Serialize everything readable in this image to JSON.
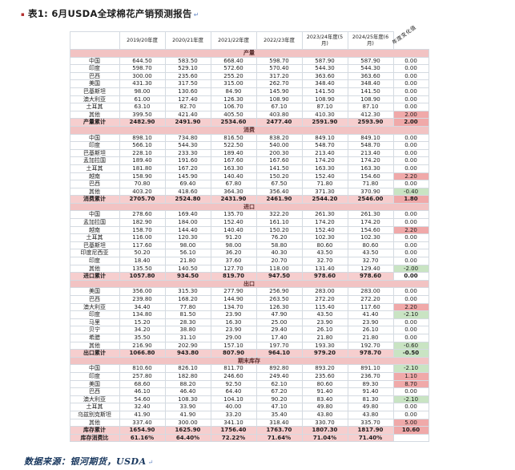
{
  "page": {
    "title": "表1: 6月USDA全球棉花产销预测报告",
    "title_bullet": "▪",
    "paragraph_mark": "↵",
    "source": "数据来源：银河期货，USDA"
  },
  "colors": {
    "section_bg": "#f2c3c3",
    "total_bg": "#f6cece",
    "positive_bg": "#f0a9a9",
    "negative_bg": "#c9e4c3",
    "border": "#d4dae1",
    "source_text": "#17365d",
    "bullet": "#b43030",
    "mark": "#6b8cc7"
  },
  "table": {
    "col_headers": [
      "",
      "2019/20年度",
      "2020/21年度",
      "2021/22年度",
      "2022/23年度",
      "2023/24年度(5月)",
      "2024/25年度(6月)"
    ],
    "change_header": "年度变化值",
    "sections": [
      {
        "id": "production",
        "name": "产量",
        "rows": [
          {
            "label": "中国",
            "values": [
              "644.50",
              "583.50",
              "668.40",
              "598.70",
              "587.90",
              "587.90"
            ],
            "change": "0.00"
          },
          {
            "label": "印度",
            "values": [
              "598.70",
              "529.10",
              "572.60",
              "570.40",
              "544.30",
              "544.30"
            ],
            "change": "0.00"
          },
          {
            "label": "巴西",
            "values": [
              "300.00",
              "235.60",
              "255.20",
              "317.20",
              "363.60",
              "363.60"
            ],
            "change": "0.00"
          },
          {
            "label": "美国",
            "values": [
              "431.30",
              "317.50",
              "315.00",
              "262.70",
              "348.40",
              "348.40"
            ],
            "change": "0.00"
          },
          {
            "label": "巴基斯坦",
            "values": [
              "98.00",
              "130.60",
              "84.90",
              "145.90",
              "141.50",
              "141.50"
            ],
            "change": "0.00"
          },
          {
            "label": "澳大利亚",
            "values": [
              "61.00",
              "127.40",
              "126.30",
              "108.90",
              "108.90",
              "108.90"
            ],
            "change": "0.00"
          },
          {
            "label": "土耳其",
            "values": [
              "63.10",
              "82.70",
              "106.70",
              "67.10",
              "87.10",
              "87.10"
            ],
            "change": "0.00"
          },
          {
            "label": "其他",
            "values": [
              "399.50",
              "421.40",
              "405.50",
              "403.80",
              "410.30",
              "412.30"
            ],
            "change": "2.00"
          },
          {
            "label": "产量累计",
            "values": [
              "2482.90",
              "2491.90",
              "2534.60",
              "2477.40",
              "2591.90",
              "2593.90"
            ],
            "change": "2.00",
            "total": true
          }
        ]
      },
      {
        "id": "consumption",
        "name": "消费",
        "rows": [
          {
            "label": "中国",
            "values": [
              "898.10",
              "734.80",
              "816.50",
              "838.20",
              "849.10",
              "849.10"
            ],
            "change": "0.00"
          },
          {
            "label": "印度",
            "values": [
              "566.10",
              "544.30",
              "522.50",
              "540.00",
              "548.70",
              "548.70"
            ],
            "change": "0.00"
          },
          {
            "label": "巴基斯坦",
            "values": [
              "228.10",
              "233.30",
              "189.40",
              "200.30",
              "213.40",
              "213.40"
            ],
            "change": "0.00"
          },
          {
            "label": "孟加拉国",
            "values": [
              "189.40",
              "191.60",
              "167.60",
              "167.60",
              "174.20",
              "174.20"
            ],
            "change": "0.00"
          },
          {
            "label": "土耳其",
            "values": [
              "181.80",
              "167.20",
              "163.30",
              "141.50",
              "163.30",
              "163.30"
            ],
            "change": "0.00"
          },
          {
            "label": "越南",
            "values": [
              "158.90",
              "145.90",
              "140.40",
              "150.20",
              "152.40",
              "154.60"
            ],
            "change": "2.20"
          },
          {
            "label": "巴西",
            "values": [
              "70.80",
              "69.40",
              "67.80",
              "67.50",
              "71.80",
              "71.80"
            ],
            "change": "0.00"
          },
          {
            "label": "其他",
            "values": [
              "403.20",
              "418.60",
              "364.30",
              "356.40",
              "371.30",
              "370.90"
            ],
            "change": "-0.40"
          },
          {
            "label": "消费累计",
            "values": [
              "2705.70",
              "2524.80",
              "2431.90",
              "2461.90",
              "2544.20",
              "2546.00"
            ],
            "change": "1.80",
            "total": true
          }
        ]
      },
      {
        "id": "imports",
        "name": "进口",
        "rows": [
          {
            "label": "中国",
            "values": [
              "278.60",
              "169.40",
              "135.70",
              "322.20",
              "261.30",
              "261.30"
            ],
            "change": "0.00"
          },
          {
            "label": "孟加拉国",
            "values": [
              "182.90",
              "184.00",
              "152.40",
              "161.10",
              "174.20",
              "174.20"
            ],
            "change": "0.00"
          },
          {
            "label": "越南",
            "values": [
              "158.70",
              "144.40",
              "140.40",
              "150.20",
              "152.40",
              "154.60"
            ],
            "change": "2.20"
          },
          {
            "label": "土耳其",
            "values": [
              "116.00",
              "120.30",
              "91.20",
              "76.20",
              "102.30",
              "102.30"
            ],
            "change": "0.00"
          },
          {
            "label": "巴基斯坦",
            "values": [
              "117.60",
              "98.00",
              "98.00",
              "58.80",
              "80.60",
              "80.60"
            ],
            "change": "0.00"
          },
          {
            "label": "印度尼西亚",
            "values": [
              "50.20",
              "56.10",
              "36.20",
              "40.30",
              "43.50",
              "43.50"
            ],
            "change": "0.00"
          },
          {
            "label": "印度",
            "values": [
              "18.40",
              "21.80",
              "37.60",
              "20.70",
              "32.70",
              "32.70"
            ],
            "change": "0.00"
          },
          {
            "label": "其他",
            "values": [
              "135.50",
              "140.50",
              "127.70",
              "118.00",
              "131.40",
              "129.40"
            ],
            "change": "-2.00"
          },
          {
            "label": "进口累计",
            "values": [
              "1057.80",
              "934.50",
              "819.70",
              "947.50",
              "978.60",
              "978.60"
            ],
            "change": "0.00",
            "total": true
          }
        ]
      },
      {
        "id": "exports",
        "name": "出口",
        "rows": [
          {
            "label": "美国",
            "values": [
              "356.00",
              "315.30",
              "277.90",
              "256.90",
              "283.00",
              "283.00"
            ],
            "change": "0.00"
          },
          {
            "label": "巴西",
            "values": [
              "239.80",
              "168.20",
              "144.90",
              "263.50",
              "272.20",
              "272.20"
            ],
            "change": "0.00"
          },
          {
            "label": "澳大利亚",
            "values": [
              "34.40",
              "77.80",
              "134.70",
              "126.30",
              "115.40",
              "117.60"
            ],
            "change": "2.20"
          },
          {
            "label": "印度",
            "values": [
              "134.80",
              "81.50",
              "23.90",
              "47.90",
              "43.50",
              "41.40"
            ],
            "change": "-2.10"
          },
          {
            "label": "马里",
            "values": [
              "15.20",
              "28.30",
              "16.30",
              "25.00",
              "23.90",
              "23.90"
            ],
            "change": "0.00"
          },
          {
            "label": "贝宁",
            "values": [
              "34.20",
              "38.80",
              "23.90",
              "29.40",
              "26.10",
              "26.10"
            ],
            "change": "0.00"
          },
          {
            "label": "希腊",
            "values": [
              "35.50",
              "31.10",
              "29.00",
              "17.40",
              "21.80",
              "21.80"
            ],
            "change": "0.00"
          },
          {
            "label": "其他",
            "values": [
              "216.90",
              "202.90",
              "157.10",
              "197.70",
              "193.30",
              "192.70"
            ],
            "change": "-0.60"
          },
          {
            "label": "出口累计",
            "values": [
              "1066.80",
              "943.80",
              "807.90",
              "964.10",
              "979.20",
              "978.70"
            ],
            "change": "-0.50",
            "total": true
          }
        ]
      },
      {
        "id": "ending-stocks",
        "name": "期末库存",
        "rows": [
          {
            "label": "中国",
            "values": [
              "810.60",
              "826.10",
              "811.70",
              "892.80",
              "893.20",
              "891.10"
            ],
            "change": "-2.10"
          },
          {
            "label": "印度",
            "values": [
              "257.80",
              "182.80",
              "246.60",
              "249.40",
              "235.60",
              "236.70"
            ],
            "change": "1.10"
          },
          {
            "label": "美国",
            "values": [
              "68.60",
              "88.20",
              "92.50",
              "62.10",
              "80.60",
              "89.30"
            ],
            "change": "8.70"
          },
          {
            "label": "巴西",
            "values": [
              "46.10",
              "46.40",
              "64.40",
              "67.20",
              "91.40",
              "91.40"
            ],
            "change": "0.00"
          },
          {
            "label": "澳大利亚",
            "values": [
              "54.60",
              "108.30",
              "104.10",
              "90.20",
              "83.40",
              "81.30"
            ],
            "change": "-2.10"
          },
          {
            "label": "土耳其",
            "values": [
              "32.40",
              "33.90",
              "40.00",
              "47.10",
              "49.80",
              "49.80"
            ],
            "change": "0.00"
          },
          {
            "label": "乌兹别克斯坦",
            "values": [
              "41.90",
              "41.90",
              "33.20",
              "35.40",
              "43.80",
              "43.80"
            ],
            "change": "0.00"
          },
          {
            "label": "其他",
            "values": [
              "337.40",
              "300.00",
              "341.10",
              "318.40",
              "330.70",
              "335.70"
            ],
            "change": "5.00"
          },
          {
            "label": "库存累计",
            "values": [
              "1654.90",
              "1625.90",
              "1756.40",
              "1763.70",
              "1807.30",
              "1817.90"
            ],
            "change": "10.60",
            "total": true
          },
          {
            "label": "库存消费比",
            "values": [
              "61.16%",
              "64.40%",
              "72.22%",
              "71.64%",
              "71.04%",
              "71.40%"
            ],
            "change": "",
            "total": true
          }
        ]
      }
    ]
  }
}
